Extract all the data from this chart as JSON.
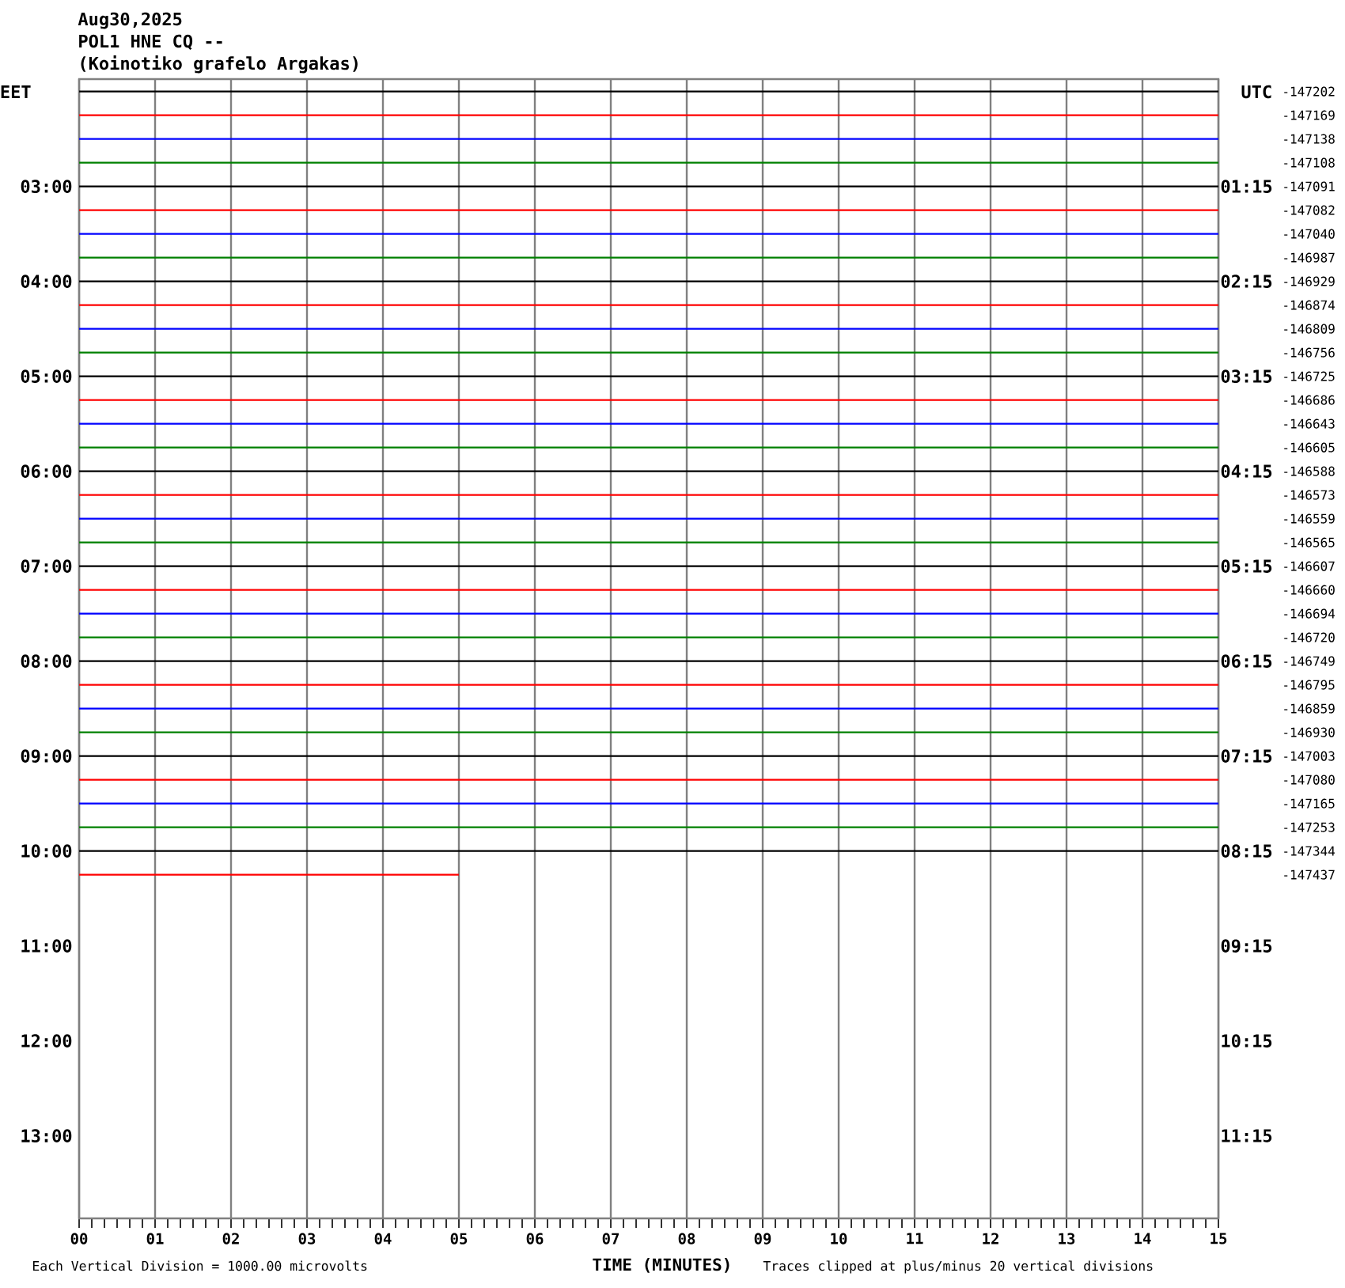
{
  "chart_data": {
    "type": "line",
    "title": "Aug30,2025",
    "subtitle": "POL1 HNE CQ --",
    "xlabel": "TIME (MINUTES)",
    "ylabel": "EET",
    "y2label": "UTC",
    "annotations": [
      "(Koinotiko grafelo Argakas)",
      "Each Vertical Division = 1000.00 microvolts",
      "Traces clipped at plus/minus 20 vertical divisions",
      "-147202",
      "-147169",
      "-147138",
      "-147108",
      "-147091",
      "-147082",
      "-147040",
      "-146987",
      "-146929",
      "-146874",
      "-146809",
      "-146756",
      "-146725",
      "-146686",
      "-146643",
      "-146605",
      "-146588",
      "-146573",
      "-146559",
      "-146565",
      "-146607",
      "-146660",
      "-146694",
      "-146720",
      "-146749",
      "-146795",
      "-146859",
      "-146930",
      "-147003",
      "-147080",
      "-147165",
      "-147253",
      "-147344",
      "-147437"
    ],
    "x": [
      0,
      15
    ],
    "series": [
      {
        "color": "#000000",
        "values": [
          2,
          2
        ]
      },
      {
        "color": "#ff0000",
        "values": [
          2.25,
          2.25
        ]
      },
      {
        "color": "#0000ff",
        "values": [
          2.5,
          2.5
        ]
      },
      {
        "color": "#008000",
        "values": [
          2.75,
          2.75
        ]
      },
      {
        "color": "#000000",
        "values": [
          3,
          3
        ]
      },
      {
        "color": "#ff0000",
        "values": [
          3.25,
          3.25
        ]
      },
      {
        "color": "#0000ff",
        "values": [
          3.5,
          3.5
        ]
      },
      {
        "color": "#008000",
        "values": [
          3.75,
          3.75
        ]
      },
      {
        "color": "#000000",
        "values": [
          4,
          4
        ]
      },
      {
        "color": "#ff0000",
        "values": [
          4.25,
          4.25
        ]
      },
      {
        "color": "#0000ff",
        "values": [
          4.5,
          4.5
        ]
      },
      {
        "color": "#008000",
        "values": [
          4.75,
          4.75
        ]
      },
      {
        "color": "#000000",
        "values": [
          5,
          5
        ]
      },
      {
        "color": "#ff0000",
        "values": [
          5.25,
          5.25
        ]
      },
      {
        "color": "#0000ff",
        "values": [
          5.5,
          5.5
        ]
      },
      {
        "color": "#008000",
        "values": [
          5.75,
          5.75
        ]
      },
      {
        "color": "#000000",
        "values": [
          6,
          6
        ]
      },
      {
        "color": "#ff0000",
        "values": [
          6.25,
          6.25
        ]
      },
      {
        "color": "#0000ff",
        "values": [
          6.5,
          6.5
        ]
      },
      {
        "color": "#008000",
        "values": [
          6.75,
          6.75
        ]
      },
      {
        "color": "#000000",
        "values": [
          7,
          7
        ]
      },
      {
        "color": "#ff0000",
        "values": [
          7.25,
          7.25
        ]
      },
      {
        "color": "#0000ff",
        "values": [
          7.5,
          7.5
        ]
      },
      {
        "color": "#008000",
        "values": [
          7.75,
          7.75
        ]
      },
      {
        "color": "#000000",
        "values": [
          8,
          8
        ]
      },
      {
        "color": "#ff0000",
        "values": [
          8.25,
          8.25
        ]
      },
      {
        "color": "#0000ff",
        "values": [
          8.5,
          8.5
        ]
      },
      {
        "color": "#008000",
        "values": [
          8.75,
          8.75
        ]
      },
      {
        "color": "#000000",
        "values": [
          9,
          9
        ]
      },
      {
        "color": "#ff0000",
        "values": [
          9.25,
          9.25
        ]
      },
      {
        "color": "#0000ff",
        "values": [
          9.5,
          9.5
        ]
      },
      {
        "color": "#008000",
        "values": [
          9.75,
          9.75
        ]
      },
      {
        "color": "#000000",
        "values": [
          10,
          10
        ]
      },
      {
        "color": "#ff0000",
        "x": [
          0,
          5
        ],
        "values": [
          10.25,
          10.25
        ]
      }
    ],
    "xlim": [
      0,
      15
    ],
    "xticks": [
      {
        "value": 0,
        "label": "00"
      },
      {
        "value": 1,
        "label": "01"
      },
      {
        "value": 2,
        "label": "02"
      },
      {
        "value": 3,
        "label": "03"
      },
      {
        "value": 4,
        "label": "04"
      },
      {
        "value": 5,
        "label": "05"
      },
      {
        "value": 6,
        "label": "06"
      },
      {
        "value": 7,
        "label": "07"
      },
      {
        "value": 8,
        "label": "08"
      },
      {
        "value": 9,
        "label": "09"
      },
      10,
      11,
      12,
      13,
      14,
      15
    ],
    "ylim": [
      13.87,
      1.87
    ],
    "yticks": [
      {
        "value": 3,
        "label": "03:00"
      },
      {
        "value": 4,
        "label": "04:00"
      },
      {
        "value": 5,
        "label": "05:00"
      },
      {
        "value": 6,
        "label": "06:00"
      },
      {
        "value": 7,
        "label": "07:00"
      },
      {
        "value": 8,
        "label": "08:00"
      },
      {
        "value": 9,
        "label": "09:00"
      },
      {
        "value": 10,
        "label": "10:00"
      },
      {
        "value": 11,
        "label": "11:00"
      },
      {
        "value": 12,
        "label": "12:00"
      },
      {
        "value": 13,
        "label": "13:00"
      }
    ],
    "y2lim": [
      12.12,
      0.12
    ],
    "y2ticks": [
      {
        "value": 1.25,
        "label": "01:15"
      },
      {
        "value": 2.25,
        "label": "02:15"
      },
      {
        "value": 3.25,
        "label": "03:15"
      },
      {
        "value": 4.25,
        "label": "04:15"
      },
      {
        "value": 5.25,
        "label": "05:15"
      },
      {
        "value": 6.25,
        "label": "06:15"
      },
      {
        "value": 7.25,
        "label": "07:15"
      },
      {
        "value": 8.25,
        "label": "08:15"
      },
      {
        "value": 9.25,
        "label": "09:15"
      },
      {
        "value": 10.25,
        "label": "10:15"
      },
      {
        "value": 11.25,
        "label": "11:15"
      }
    ],
    "grid": "x",
    "line_style": "solid"
  }
}
